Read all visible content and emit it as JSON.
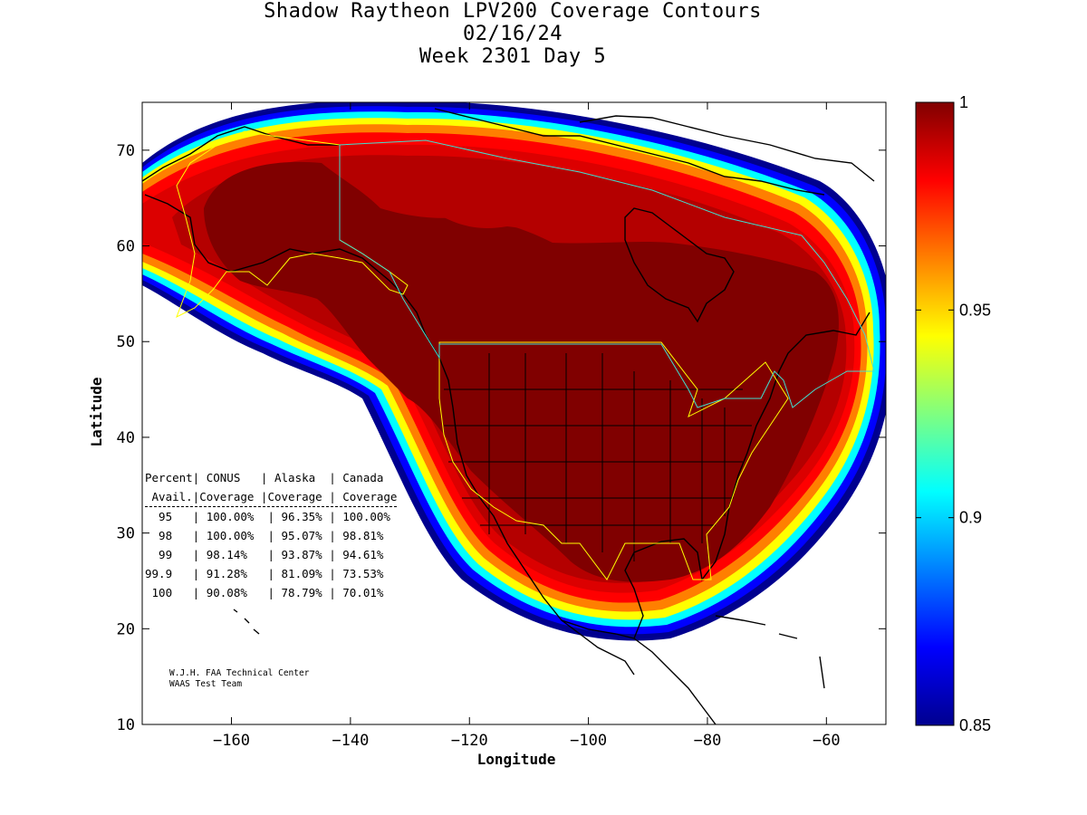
{
  "title": {
    "line1": "Shadow Raytheon LPV200 Coverage Contours",
    "line2": "02/16/24",
    "line3": "Week 2301 Day 5"
  },
  "axes": {
    "xlabel": "Longitude",
    "ylabel": "Latitude",
    "xlim": [
      -175,
      -50
    ],
    "ylim": [
      10,
      75
    ],
    "xticks": [
      -160,
      -140,
      -120,
      -100,
      -80,
      -60
    ],
    "yticks": [
      10,
      20,
      30,
      40,
      50,
      60,
      70
    ]
  },
  "colorbar": {
    "min": 0.85,
    "max": 1,
    "tick_values": [
      1,
      0.95,
      0.9,
      0.85
    ],
    "tick_labels": [
      "1",
      "0.95",
      "0.9",
      "0.85"
    ],
    "colormap": "jet"
  },
  "stats": {
    "header1": "Percent| CONUS   | Alaska  | Canada",
    "header2": " Avail.|Coverage |Coverage | Coverage",
    "rows": [
      "  95   | 100.00%  | 96.35% | 100.00%",
      "  98   | 100.00%  | 95.07% | 98.81%",
      "  99   | 98.14%   | 93.87% | 94.61%",
      "99.9   | 91.28%   | 81.09% | 73.53%",
      " 100   | 90.08%   | 78.79% | 70.01%"
    ]
  },
  "credits": {
    "line1": "W.J.H. FAA Technical Center",
    "line2": "WAAS Test Team"
  },
  "colors": {
    "coverage_full": "#800000",
    "coverage_high": "#b40000",
    "conus_outline": "#ffff00",
    "canada_outline": "#40e0d0",
    "coastline": "#000000"
  }
}
